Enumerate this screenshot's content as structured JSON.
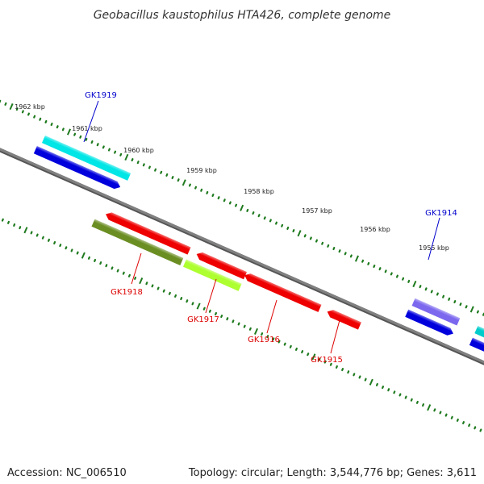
{
  "title": "Geobacillus kaustophilus HTA426, complete genome",
  "footer": {
    "accession": "Accession: NC_006510",
    "summary": "Topology: circular; Length: 3,544,776 bp; Genes: 3,611"
  },
  "scale_labels": [
    "1962 kbp",
    "1961 kbp",
    "1960 kbp",
    "1959 kbp",
    "1958 kbp",
    "1957 kbp",
    "1956 kbp",
    "1955 kbp"
  ],
  "genes": [
    {
      "id": "GK1919",
      "strand": "+",
      "color": "#0000dd",
      "label_color": "#0000cc",
      "cds_color": "#00e5e5"
    },
    {
      "id": "GK1918",
      "strand": "-",
      "color": "#ee0000",
      "label_color": "#dd0000",
      "cds_color": "#6b8e23"
    },
    {
      "id": "GK1917",
      "strand": "-",
      "color": "#ee0000",
      "label_color": "#dd0000",
      "cds_color": "#adff2f"
    },
    {
      "id": "GK1916",
      "strand": "-",
      "color": "#ee0000",
      "label_color": "#dd0000",
      "cds_color": ""
    },
    {
      "id": "GK1915",
      "strand": "-",
      "color": "#ee0000",
      "label_color": "#dd0000",
      "cds_color": ""
    },
    {
      "id": "GK1914",
      "strand": "+",
      "color": "#0000dd",
      "label_color": "#0000cc",
      "cds_color": "#7b68ee"
    }
  ],
  "colors": {
    "backbone": "#808080",
    "ticks": "#1e7a1e"
  }
}
